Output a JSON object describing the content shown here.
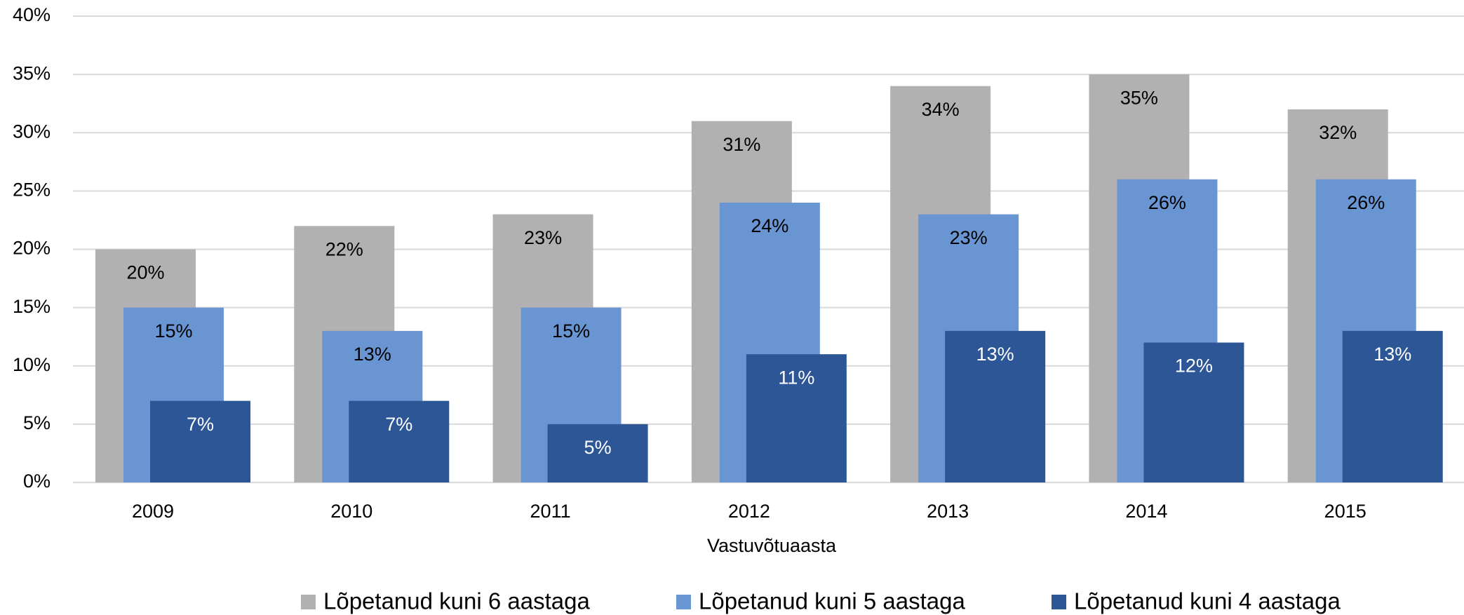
{
  "chart_data": {
    "type": "bar",
    "x_label": "Vastuvõtuaasta",
    "categories": [
      "2009",
      "2010",
      "2011",
      "2012",
      "2013",
      "2014",
      "2015"
    ],
    "series": [
      {
        "name": "Lõpetanud kuni 6 aastaga",
        "color": "#b0b1b0",
        "label_color": "#000000",
        "values": [
          20,
          22,
          23,
          31,
          34,
          35,
          32
        ],
        "value_labels": [
          "20%",
          "22%",
          "23%",
          "31%",
          "34%",
          "35%",
          "32%"
        ]
      },
      {
        "name": "Lõpetanud kuni 5 aastaga",
        "color": "#6a95d3",
        "label_color": "#000000",
        "values": [
          15,
          13,
          15,
          24,
          23,
          26,
          26
        ],
        "value_labels": [
          "15%",
          "13%",
          "15%",
          "24%",
          "23%",
          "26%",
          "26%"
        ]
      },
      {
        "name": "Lõpetanud kuni 4 aastaga",
        "color": "#2d5697",
        "label_color": "#ffffff",
        "values": [
          7,
          7,
          5,
          11,
          13,
          12,
          13
        ],
        "value_labels": [
          "7%",
          "7%",
          "5%",
          "11%",
          "13%",
          "12%",
          "13%"
        ]
      }
    ],
    "ylim": [
      0,
      40
    ],
    "yticks": [
      {
        "value": 0,
        "label": "0%"
      },
      {
        "value": 5,
        "label": "5%"
      },
      {
        "value": 10,
        "label": "10%"
      },
      {
        "value": 15,
        "label": "15%"
      },
      {
        "value": 20,
        "label": "20%"
      },
      {
        "value": 25,
        "label": "25%"
      },
      {
        "value": 30,
        "label": "30%"
      },
      {
        "value": 35,
        "label": "35%"
      },
      {
        "value": 40,
        "label": "40%"
      }
    ],
    "grid": true,
    "legend": "bottom"
  }
}
